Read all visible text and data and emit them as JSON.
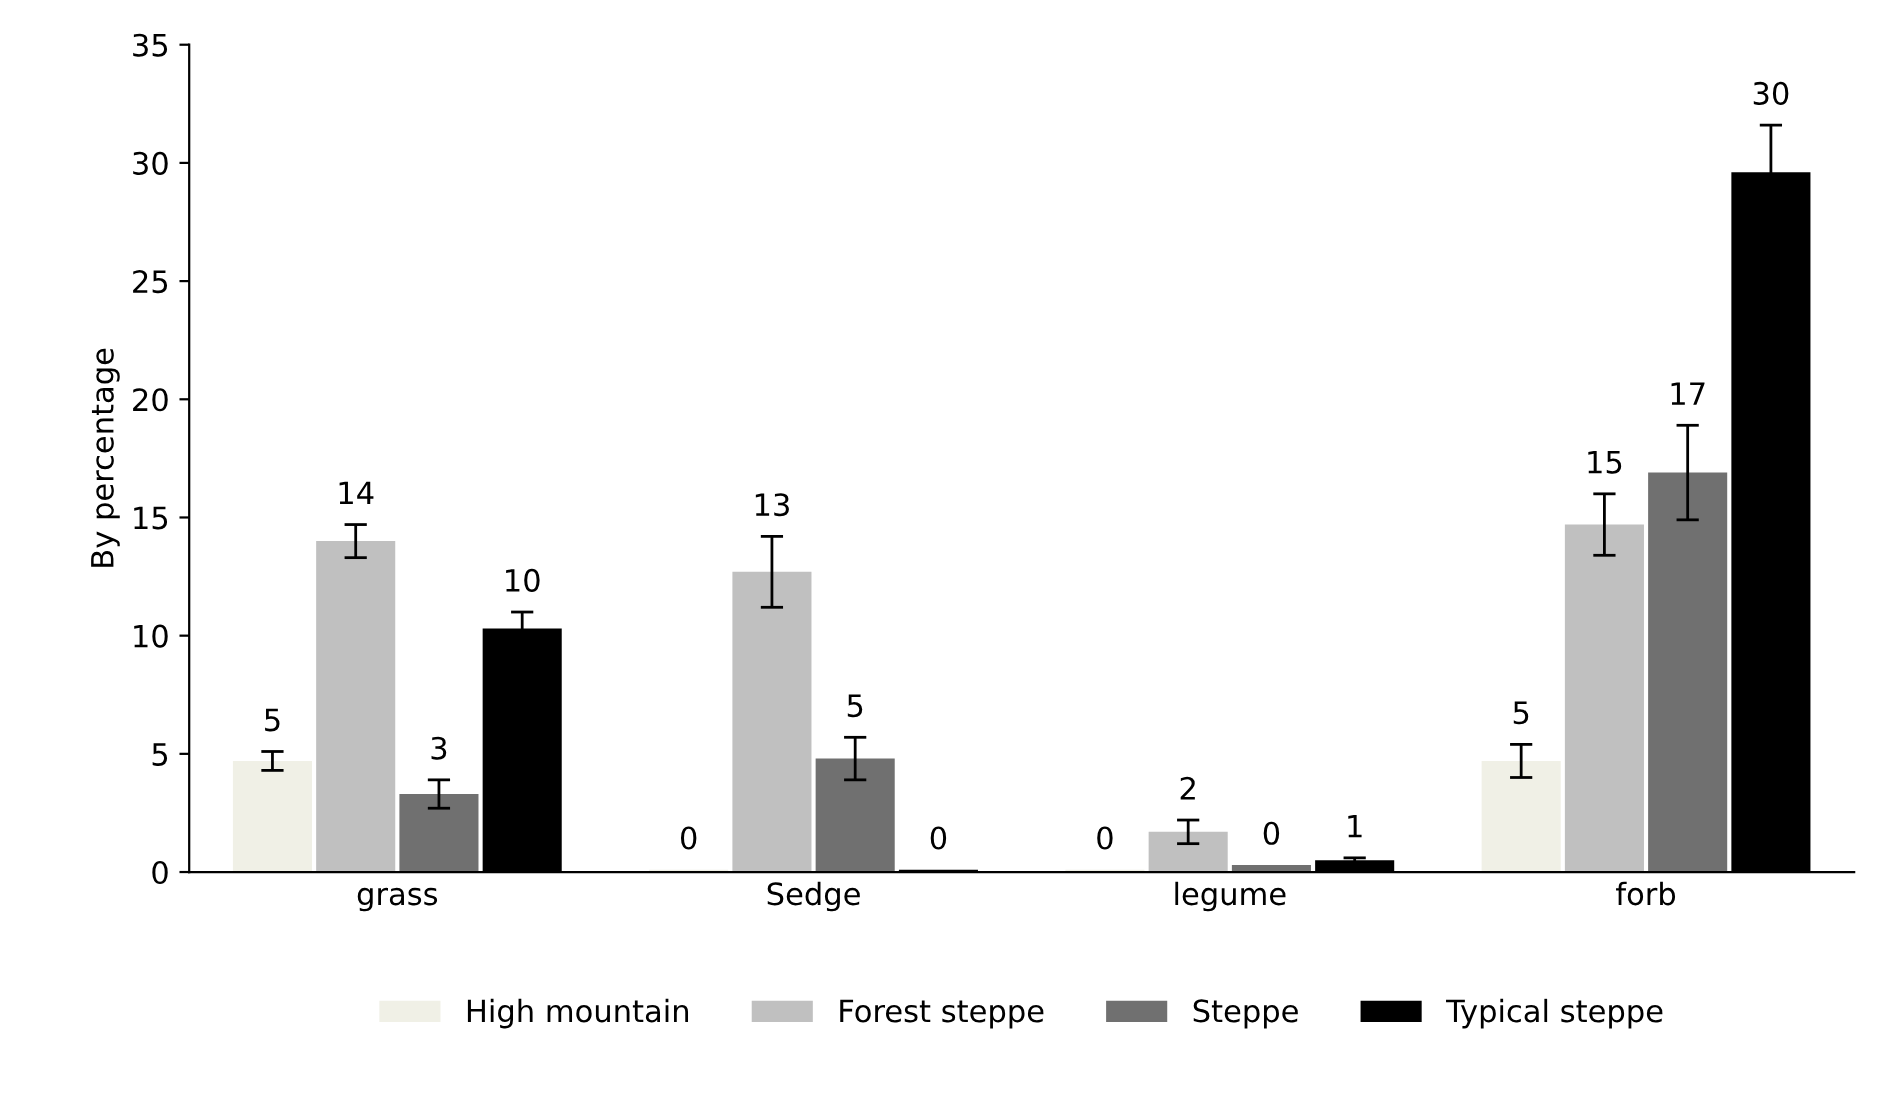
{
  "chart_data": {
    "type": "bar",
    "ylabel": "By percentage",
    "categories": [
      "grass",
      "Sedge",
      "legume",
      "forb"
    ],
    "ylim": [
      0,
      35
    ],
    "yticks": [
      0,
      5,
      10,
      15,
      20,
      25,
      30,
      35
    ],
    "grid": false,
    "legend": "bottom",
    "series": [
      {
        "name": "High mountain",
        "color": "#f0f0e6",
        "values": [
          4.7,
          0.1,
          0.1,
          4.7
        ],
        "errors": [
          0.4,
          null,
          null,
          0.7
        ],
        "value_labels": [
          "5",
          "0",
          "0",
          "5"
        ]
      },
      {
        "name": "Forest steppe",
        "color": "#c0c0c0",
        "values": [
          14.0,
          12.7,
          1.7,
          14.7
        ],
        "errors": [
          0.7,
          1.5,
          0.5,
          1.3
        ],
        "value_labels": [
          "14",
          "13",
          "2",
          "15"
        ]
      },
      {
        "name": "Steppe",
        "color": "#707070",
        "values": [
          3.3,
          4.8,
          0.3,
          16.9
        ],
        "errors": [
          0.6,
          0.9,
          null,
          2.0
        ],
        "value_labels": [
          "3",
          "5",
          "0",
          "17"
        ]
      },
      {
        "name": "Typical steppe",
        "color": "#000000",
        "values": [
          10.3,
          0.1,
          0.5,
          29.6
        ],
        "errors": [
          0.7,
          null,
          0.1,
          2.0
        ],
        "value_labels": [
          "10",
          "0",
          "1",
          "30"
        ]
      }
    ]
  }
}
